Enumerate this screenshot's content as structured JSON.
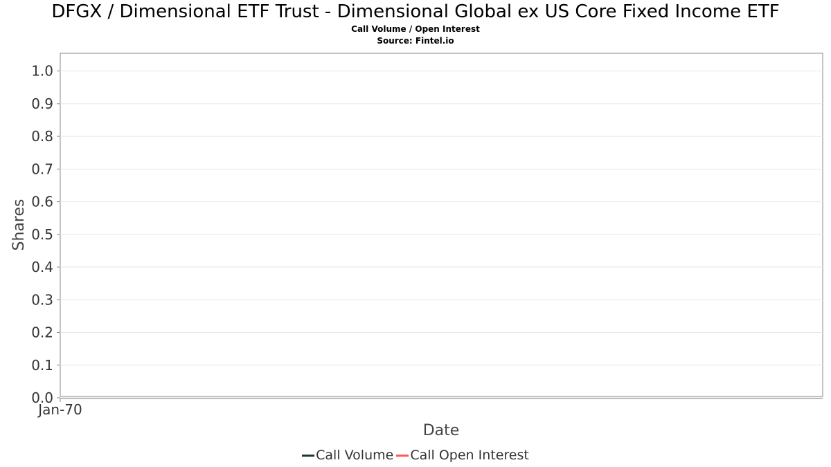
{
  "title": "DFGX / Dimensional ETF Trust - Dimensional Global ex US Core Fixed Income ETF",
  "subtitle": "Call Volume / Open Interest",
  "source": "Source: Fintel.io",
  "chart_data": {
    "type": "line",
    "xlabel": "Date",
    "ylabel": "Shares",
    "x_ticks": [
      "Jan-70"
    ],
    "y_ticks": [
      "0.0",
      "0.1",
      "0.2",
      "0.3",
      "0.4",
      "0.5",
      "0.6",
      "0.7",
      "0.8",
      "0.9",
      "1.0"
    ],
    "ylim": [
      0,
      1.05
    ],
    "grid": true,
    "legend_position": "bottom",
    "series": [
      {
        "name": "Call Volume",
        "color": "#1a3a2a",
        "x": [],
        "values": []
      },
      {
        "name": "Call Open Interest",
        "color": "#ff5a5a",
        "x": [],
        "values": []
      }
    ]
  },
  "legend": {
    "items": [
      {
        "label": "Call Volume",
        "color": "#1a3a2a"
      },
      {
        "label": "Call Open Interest",
        "color": "#ff5a5a"
      }
    ]
  }
}
